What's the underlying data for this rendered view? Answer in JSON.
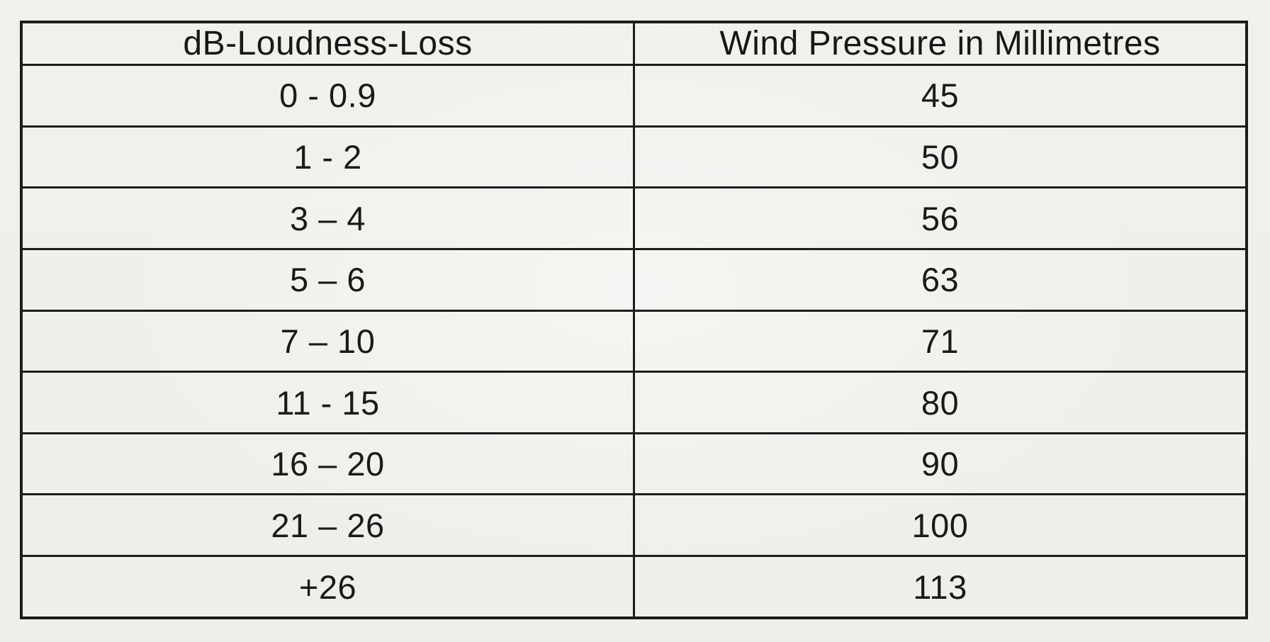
{
  "page": {
    "background_color": "#f0efeb",
    "border_color": "#1c1c1c",
    "text_color": "#1a1a1a"
  },
  "table": {
    "columns": [
      "dB-Loudness-Loss",
      "Wind Pressure in Millimetres"
    ],
    "rows": [
      {
        "loudness_loss": "0 - 0.9",
        "wind_pressure": "45"
      },
      {
        "loudness_loss": "1 - 2",
        "wind_pressure": "50"
      },
      {
        "loudness_loss": "3 – 4",
        "wind_pressure": "56"
      },
      {
        "loudness_loss": "5 – 6",
        "wind_pressure": "63"
      },
      {
        "loudness_loss": "7 – 10",
        "wind_pressure": "71"
      },
      {
        "loudness_loss": "11 - 15",
        "wind_pressure": "80"
      },
      {
        "loudness_loss": "16 – 20",
        "wind_pressure": "90"
      },
      {
        "loudness_loss": "21 – 26",
        "wind_pressure": "100"
      },
      {
        "loudness_loss": "+26",
        "wind_pressure": "113"
      }
    ]
  },
  "chart_data": {
    "type": "table",
    "title": "",
    "columns": [
      "dB-Loudness-Loss",
      "Wind Pressure in Millimetres"
    ],
    "categories": [
      "0 - 0.9",
      "1 - 2",
      "3 – 4",
      "5 – 6",
      "7 – 10",
      "11 - 15",
      "16 – 20",
      "21 – 26",
      "+26"
    ],
    "values": [
      45,
      50,
      56,
      63,
      71,
      80,
      90,
      100,
      113
    ]
  }
}
